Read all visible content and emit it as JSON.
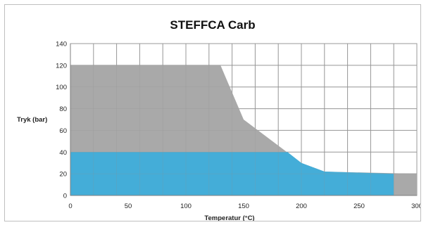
{
  "chart_data": {
    "type": "area",
    "title": "STEFFCA Carb",
    "xlabel": "Temperatur (°C)",
    "ylabel": "Tryk (bar)",
    "xlim": [
      0,
      300
    ],
    "ylim": [
      0,
      140
    ],
    "x_ticks": [
      0,
      50,
      100,
      150,
      200,
      250,
      300
    ],
    "x_tick_labels": [
      "0",
      "50",
      "100",
      "150",
      "200",
      "250",
      "300"
    ],
    "y_ticks": [
      0,
      20,
      40,
      60,
      80,
      100,
      120,
      140
    ],
    "y_tick_labels": [
      "0",
      "20",
      "40",
      "60",
      "80",
      "100",
      "120",
      "140"
    ],
    "grid": true,
    "legend": "none",
    "series": [
      {
        "color": "#a9a9a9",
        "x": [
          0,
          130,
          150,
          200,
          220,
          300,
          300
        ],
        "y": [
          120,
          120,
          70,
          30,
          22,
          20,
          0
        ]
      },
      {
        "color": "#44add8",
        "x": [
          0,
          188,
          200,
          220,
          280,
          280
        ],
        "y": [
          40,
          40,
          30,
          22,
          20,
          0
        ]
      }
    ]
  }
}
